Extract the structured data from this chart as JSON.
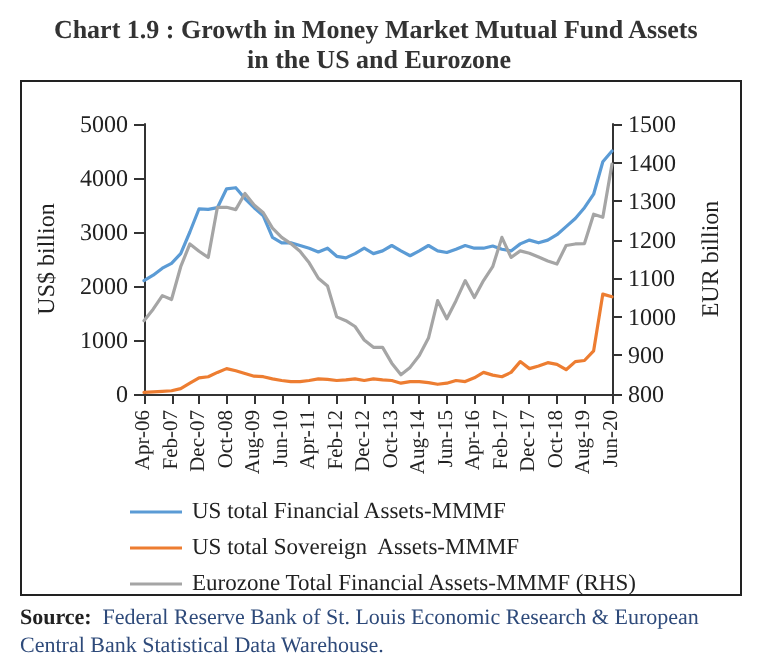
{
  "chart_data": {
    "type": "line",
    "title": "Chart 1.9 : Growth in Money Market Mutual Fund Assets in the US and Eurozone",
    "categories": [
      "Apr-06",
      null,
      null,
      "Feb-07",
      null,
      null,
      "Dec-07",
      null,
      null,
      "Oct-08",
      null,
      null,
      "Aug-09",
      null,
      null,
      "Jun-10",
      null,
      null,
      "Apr-11",
      null,
      null,
      "Feb-12",
      null,
      null,
      "Dec-12",
      null,
      null,
      "Oct-13",
      null,
      null,
      "Aug-14",
      null,
      null,
      "Jun-15",
      null,
      null,
      "Apr-16",
      null,
      null,
      "Feb-17",
      null,
      null,
      "Dec-17",
      null,
      null,
      "Oct-18",
      null,
      null,
      "Aug-19",
      null,
      null,
      "Jun-20"
    ],
    "series": [
      {
        "name": "US total Financial Assets-MMMF",
        "color": "#5b9bd5",
        "values": [
          2100,
          2200,
          2330,
          2420,
          2600,
          3000,
          3430,
          3420,
          3450,
          3800,
          3820,
          3620,
          3450,
          3300,
          2900,
          2800,
          2800,
          2750,
          2700,
          2630,
          2700,
          2550,
          2520,
          2600,
          2700,
          2600,
          2650,
          2750,
          2650,
          2560,
          2650,
          2750,
          2650,
          2620,
          2680,
          2750,
          2700,
          2700,
          2740,
          2680,
          2650,
          2780,
          2850,
          2800,
          2850,
          2950,
          3100,
          3250,
          3450,
          3700,
          4300,
          4500
        ]
      },
      {
        "name": "US total Sovereign  Assets-MMMF",
        "color": "#ed7d31",
        "values": [
          30,
          40,
          50,
          60,
          100,
          200,
          300,
          320,
          400,
          470,
          430,
          380,
          330,
          320,
          280,
          250,
          230,
          230,
          250,
          280,
          270,
          250,
          260,
          280,
          250,
          280,
          260,
          250,
          200,
          230,
          230,
          210,
          180,
          200,
          250,
          230,
          300,
          400,
          350,
          320,
          400,
          600,
          470,
          520,
          580,
          550,
          450,
          600,
          620,
          800,
          1850,
          1800
        ]
      },
      {
        "name": "Eurozone Total Financial Assets-MMMF (RHS)",
        "color": "#a5a5a5",
        "axis": "y2",
        "values": [
          990,
          1020,
          1055,
          1045,
          1130,
          1189,
          1170,
          1154,
          1284,
          1284,
          1278,
          1320,
          1290,
          1270,
          1230,
          1206,
          1190,
          1170,
          1140,
          1100,
          1080,
          1000,
          990,
          975,
          940,
          921,
          921,
          880,
          850,
          869,
          900,
          945,
          1042,
          995,
          1042,
          1094,
          1050,
          1094,
          1130,
          1206,
          1154,
          1171,
          1165,
          1155,
          1145,
          1137,
          1185,
          1189,
          1190,
          1266,
          1258,
          1396
        ]
      }
    ],
    "ylabel": "US$ billion",
    "y2label": "EUR billion",
    "ylim": [
      0,
      5000
    ],
    "yticks": [
      0,
      1000,
      2000,
      3000,
      4000,
      5000
    ],
    "y2lim": [
      800,
      1500
    ],
    "y2ticks": [
      800,
      900,
      1000,
      1100,
      1200,
      1300,
      1400,
      1500
    ],
    "legend": "bottom left",
    "grid": false,
    "marker": "none",
    "line_style": "solid",
    "annotations": [
      "Source: Federal Reserve Bank of St. Louis Economic Research & European Central Bank Statistical Data Warehouse."
    ]
  }
}
